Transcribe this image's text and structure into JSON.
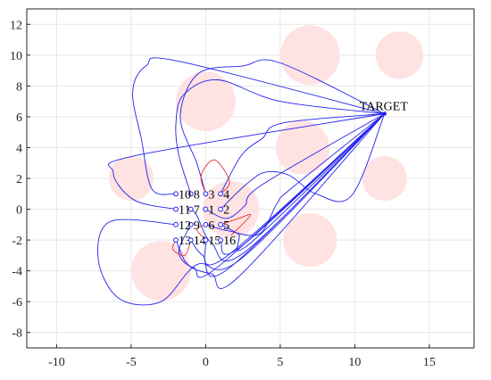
{
  "chart_data": {
    "type": "scatter",
    "title": "",
    "xlabel": "",
    "ylabel": "",
    "xlim": [
      -12,
      18
    ],
    "ylim": [
      -9,
      13
    ],
    "grid": true,
    "x_ticks": [
      -10,
      -5,
      0,
      5,
      10,
      15
    ],
    "y_ticks": [
      -8,
      -6,
      -4,
      -2,
      0,
      2,
      4,
      6,
      8,
      10,
      12
    ],
    "colors": {
      "obstacle": "#ffe2e2",
      "path": "#2222ee",
      "red_path": "#e03030",
      "node": "#2222ee",
      "grid": "#e6e6e6",
      "axis": "#262626"
    },
    "obstacles": [
      {
        "cx": 7,
        "cy": 10,
        "r": 2
      },
      {
        "cx": 13,
        "cy": 10,
        "r": 1.6
      },
      {
        "cx": 0,
        "cy": 7,
        "r": 2
      },
      {
        "cx": 6.5,
        "cy": 4,
        "r": 1.8
      },
      {
        "cx": -5,
        "cy": 2,
        "r": 1.5
      },
      {
        "cx": 12,
        "cy": 2,
        "r": 1.5
      },
      {
        "cx": 1.7,
        "cy": 0,
        "r": 1.9
      },
      {
        "cx": 7,
        "cy": -2,
        "r": 1.8
      },
      {
        "cx": -3,
        "cy": -4,
        "r": 2
      }
    ],
    "target": {
      "label": "TARGET",
      "x": 12,
      "y": 6.2
    },
    "nodes": [
      {
        "id": "1",
        "x": 0,
        "y": 0
      },
      {
        "id": "2",
        "x": 1,
        "y": 0
      },
      {
        "id": "3",
        "x": 0,
        "y": 1
      },
      {
        "id": "4",
        "x": 1,
        "y": 1
      },
      {
        "id": "5",
        "x": 1,
        "y": -1
      },
      {
        "id": "6",
        "x": 0,
        "y": -1
      },
      {
        "id": "7",
        "x": -1,
        "y": 0
      },
      {
        "id": "8",
        "x": -1,
        "y": 1
      },
      {
        "id": "9",
        "x": -1,
        "y": -1
      },
      {
        "id": "10",
        "x": -2,
        "y": 1
      },
      {
        "id": "11",
        "x": -2,
        "y": 0
      },
      {
        "id": "12",
        "x": -2,
        "y": -1
      },
      {
        "id": "13",
        "x": -2,
        "y": -2
      },
      {
        "id": "14",
        "x": -1,
        "y": -2
      },
      {
        "id": "15",
        "x": 0,
        "y": -2
      },
      {
        "id": "16",
        "x": 1,
        "y": -2
      }
    ],
    "paths": [
      [
        [
          -2,
          1
        ],
        [
          -3.6,
          1.3
        ],
        [
          -4.3,
          4.5
        ],
        [
          -4.9,
          7.6
        ],
        [
          -4,
          9.3
        ],
        [
          -1.8,
          9.6
        ],
        [
          12,
          6.2
        ]
      ],
      [
        [
          -1,
          1
        ],
        [
          -1.8,
          3.5
        ],
        [
          -2,
          5.5
        ],
        [
          -1.5,
          7.4
        ],
        [
          0.8,
          8.4
        ],
        [
          5,
          7
        ],
        [
          12,
          6.2
        ]
      ],
      [
        [
          0,
          1
        ],
        [
          -0.6,
          3
        ],
        [
          -1.7,
          6
        ],
        [
          -0.5,
          8.8
        ],
        [
          2.5,
          9.3
        ],
        [
          5,
          9.5
        ],
        [
          12,
          6.2
        ]
      ],
      [
        [
          1,
          1
        ],
        [
          2.4,
          3.5
        ],
        [
          3.8,
          4.6
        ],
        [
          5.2,
          5.6
        ],
        [
          12,
          6.2
        ]
      ],
      [
        [
          -2,
          0
        ],
        [
          -4.8,
          0.6
        ],
        [
          -6.2,
          2.4
        ],
        [
          -4.6,
          3.5
        ],
        [
          12,
          6.2
        ]
      ],
      [
        [
          1,
          0
        ],
        [
          2.7,
          1.6
        ],
        [
          4,
          2.4
        ],
        [
          5.6,
          2.2
        ],
        [
          7.4,
          1
        ],
        [
          9.8,
          0.9
        ],
        [
          12,
          6.2
        ]
      ],
      [
        [
          0,
          -1
        ],
        [
          1.5,
          -1.4
        ],
        [
          3.6,
          -1.6
        ],
        [
          4.8,
          0.4
        ],
        [
          5.8,
          1.4
        ],
        [
          12,
          6.2
        ]
      ],
      [
        [
          -2,
          -1
        ],
        [
          -6.4,
          -0.8
        ],
        [
          -7.2,
          -3.3
        ],
        [
          -5.8,
          -5.8
        ],
        [
          -3,
          -6
        ],
        [
          -0.6,
          -3.6
        ],
        [
          2.4,
          -3.2
        ],
        [
          12,
          6.2
        ]
      ],
      [
        [
          -2,
          -2
        ],
        [
          -1.2,
          -3.6
        ],
        [
          0.4,
          -4.2
        ],
        [
          2.2,
          -4.4
        ],
        [
          12,
          6.2
        ]
      ],
      [
        [
          -1,
          -2
        ],
        [
          -0.2,
          -3
        ],
        [
          1.6,
          -3.8
        ],
        [
          12,
          6.2
        ]
      ],
      [
        [
          0,
          -2
        ],
        [
          1.2,
          -3.2
        ],
        [
          12,
          6.2
        ]
      ],
      [
        [
          1,
          -2
        ],
        [
          2.4,
          -2.4
        ],
        [
          12,
          6.2
        ]
      ],
      [
        [
          -1,
          0
        ],
        [
          -0.6,
          -0.4
        ],
        [
          0.4,
          -2.2
        ],
        [
          2.6,
          -2.8
        ],
        [
          12,
          6.2
        ]
      ],
      [
        [
          -1,
          -1
        ],
        [
          -1.8,
          -2.8
        ],
        [
          -0.8,
          -3.8
        ],
        [
          1,
          -3.6
        ],
        [
          12,
          6.2
        ]
      ],
      [
        [
          1,
          -1
        ],
        [
          2.2,
          -1.6
        ],
        [
          3,
          -2.2
        ],
        [
          12,
          6.2
        ]
      ],
      [
        [
          0,
          0
        ],
        [
          1.4,
          -0.6
        ],
        [
          2.6,
          0.2
        ],
        [
          3.8,
          1.6
        ],
        [
          12,
          6.2
        ]
      ]
    ],
    "red_paths": [
      [
        [
          0,
          1
        ],
        [
          -0.3,
          2.2
        ],
        [
          0.6,
          3.2
        ],
        [
          1.6,
          1.8
        ],
        [
          1,
          1
        ]
      ],
      [
        [
          1,
          -1
        ],
        [
          2.2,
          -0.6
        ],
        [
          3,
          -0.4
        ],
        [
          1.7,
          -1.7
        ]
      ],
      [
        [
          -2,
          -2
        ],
        [
          -2.2,
          -2.6
        ],
        [
          -1.4,
          -3
        ],
        [
          -1,
          -2
        ]
      ],
      [
        [
          0,
          -1
        ],
        [
          -0.6,
          -1.3
        ],
        [
          -0.2,
          -1.8
        ],
        [
          0,
          -2
        ]
      ]
    ]
  }
}
